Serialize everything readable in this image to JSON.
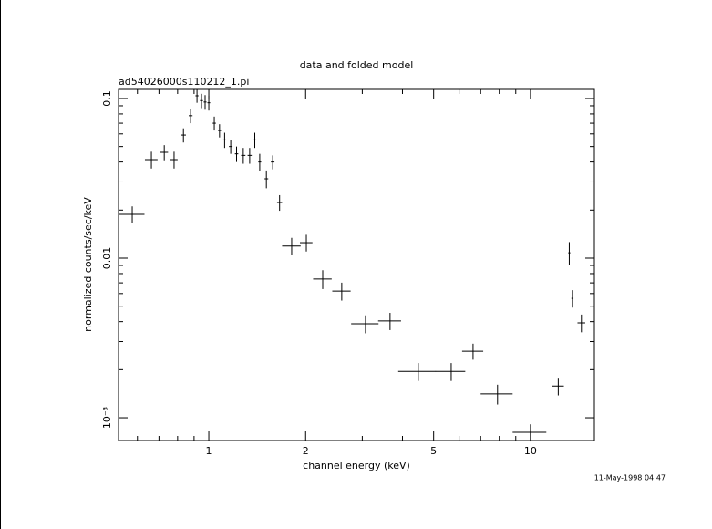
{
  "chart_data": {
    "type": "scatter",
    "title": "data and folded model",
    "subtitle": "ad54026000s110212_1.pi",
    "x_label": "channel energy (keV)",
    "y_label": "normalized counts/sec/keV",
    "footer": "11-May-1998 04:47",
    "xlog": true,
    "ylog": true,
    "xlim": [
      0.524,
      15.8
    ],
    "ylim": [
      0.00072,
      0.114
    ],
    "xticks": [
      1,
      2,
      5,
      10
    ],
    "xminorticks": [
      0.6,
      0.7,
      0.8,
      0.9,
      3,
      4,
      6,
      7,
      8,
      9
    ],
    "yticks": [
      0.1,
      0.01,
      {
        "value": 0.001,
        "label": "10⁻³"
      }
    ],
    "yminorticks": [
      0.002,
      0.003,
      0.004,
      0.005,
      0.006,
      0.007,
      0.008,
      0.009,
      0.02,
      0.03,
      0.04,
      0.05,
      0.06,
      0.07,
      0.08,
      0.09
    ],
    "series": [
      {
        "color": "#000000",
        "x": [
          0.578,
          0.663,
          0.727,
          0.78,
          0.834,
          0.878,
          0.919,
          0.949,
          0.974,
          1.0,
          1.04,
          1.08,
          1.12,
          1.17,
          1.22,
          1.28,
          1.34,
          1.39,
          1.44,
          1.51,
          1.58,
          1.66,
          1.81,
          2.01,
          2.26,
          2.59,
          3.07,
          3.66,
          4.48,
          5.67,
          6.63,
          7.9,
          10.0,
          12.2,
          13.2,
          13.5,
          14.4
        ],
        "xerr": [
          0.053,
          0.03,
          0.02,
          0.02,
          0.015,
          0.012,
          0.01,
          0.01,
          0.01,
          0.01,
          0.012,
          0.012,
          0.012,
          0.015,
          0.015,
          0.02,
          0.02,
          0.015,
          0.015,
          0.02,
          0.02,
          0.03,
          0.12,
          0.09,
          0.15,
          0.17,
          0.3,
          0.3,
          0.6,
          0.6,
          0.5,
          0.9,
          1.2,
          0.5,
          0.1,
          0.1,
          0.4
        ],
        "y": [
          0.0188,
          0.0414,
          0.046,
          0.0414,
          0.059,
          0.078,
          0.104,
          0.097,
          0.095,
          0.094,
          0.07,
          0.063,
          0.055,
          0.05,
          0.045,
          0.044,
          0.044,
          0.055,
          0.04,
          0.0314,
          0.04,
          0.0223,
          0.0119,
          0.0125,
          0.0074,
          0.00622,
          0.00388,
          0.00404,
          0.00195,
          0.00195,
          0.00261,
          0.00141,
          0.00081,
          0.00158,
          0.0108,
          0.0056,
          0.00393
        ],
        "yerr": [
          0.0023,
          0.005,
          0.005,
          0.005,
          0.006,
          0.008,
          0.01,
          0.01,
          0.01,
          0.01,
          0.007,
          0.006,
          0.006,
          0.005,
          0.005,
          0.005,
          0.005,
          0.006,
          0.005,
          0.004,
          0.004,
          0.0025,
          0.0015,
          0.0015,
          0.001,
          0.0008,
          0.0005,
          0.0005,
          0.00025,
          0.00025,
          0.0003,
          0.0002,
          0.0001,
          0.0002,
          0.0018,
          0.0007,
          0.0005
        ]
      }
    ]
  }
}
